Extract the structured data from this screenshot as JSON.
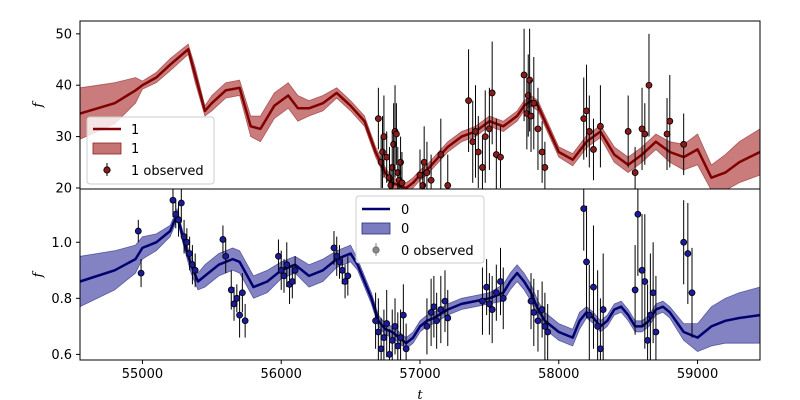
{
  "chart_data": [
    {
      "type": "line",
      "panel": "top",
      "title": "",
      "xlabel": "",
      "ylabel": "f",
      "xlim": [
        54550,
        59450
      ],
      "ylim": [
        19.8,
        52.5
      ],
      "xticks": [],
      "yticks": [
        20,
        30,
        40,
        50
      ],
      "ytick_labels": [
        "20",
        "30",
        "40",
        "50"
      ],
      "legend_placement": "lower-left",
      "colors": {
        "line": "#800000",
        "band": "#b85050",
        "points": "#8b1a1a"
      },
      "series": [
        {
          "name": "1",
          "kind": "model",
          "x": [
            54550,
            54800,
            54950,
            55000,
            55100,
            55200,
            55330,
            55380,
            55450,
            55500,
            55600,
            55700,
            55780,
            55850,
            55950,
            56050,
            56120,
            56200,
            56300,
            56400,
            56500,
            56600,
            56680,
            56750,
            56800,
            56850,
            56900,
            56950,
            57000,
            57050,
            57100,
            57150,
            57200,
            57300,
            57400,
            57500,
            57600,
            57700,
            57750,
            57800,
            57850,
            57900,
            58000,
            58100,
            58200,
            58300,
            58400,
            58500,
            58600,
            58700,
            58800,
            58900,
            59000,
            59100,
            59200,
            59300,
            59450
          ],
          "y": [
            34.5,
            36.5,
            39.0,
            40.0,
            41.5,
            44.0,
            47.0,
            42.0,
            35.0,
            36.5,
            39.0,
            39.5,
            32.0,
            31.5,
            36.0,
            38.0,
            35.5,
            35.5,
            36.5,
            38.5,
            36.0,
            33.0,
            27.0,
            23.0,
            21.0,
            20.5,
            20.0,
            21.0,
            22.5,
            23.5,
            25.0,
            26.5,
            28.0,
            30.0,
            31.0,
            33.0,
            32.0,
            34.0,
            36.0,
            37.0,
            36.0,
            33.0,
            27.0,
            25.5,
            29.0,
            31.0,
            26.5,
            24.5,
            26.5,
            29.0,
            27.0,
            26.0,
            27.5,
            22.0,
            23.0,
            25.0,
            27.0
          ]
        },
        {
          "name": "1",
          "kind": "band",
          "halfwidth": [
            5.0,
            4.0,
            2.5,
            0.8,
            1.0,
            1.2,
            1.0,
            1.5,
            1.0,
            1.5,
            1.5,
            1.5,
            2.0,
            2.5,
            2.5,
            2.5,
            2.5,
            1.5,
            1.5,
            1.0,
            1.0,
            1.0,
            1.0,
            1.0,
            1.0,
            1.0,
            1.0,
            1.0,
            1.0,
            1.0,
            1.0,
            1.0,
            1.0,
            1.0,
            1.0,
            1.0,
            1.0,
            1.0,
            1.0,
            1.0,
            1.0,
            1.0,
            1.0,
            1.2,
            1.2,
            1.2,
            1.5,
            1.5,
            1.5,
            1.5,
            2.0,
            2.5,
            3.0,
            2.5,
            3.5,
            4.0,
            4.5
          ]
        },
        {
          "name": "1 observed",
          "kind": "points",
          "x": [
            56700,
            56720,
            56730,
            56740,
            56760,
            56780,
            56790,
            56800,
            56810,
            56820,
            56830,
            56840,
            56850,
            56860,
            56870,
            57000,
            57020,
            57030,
            57050,
            57080,
            57150,
            57200,
            57350,
            57380,
            57400,
            57420,
            57450,
            57470,
            57500,
            57520,
            57550,
            57580,
            57750,
            57770,
            57780,
            57790,
            57800,
            57820,
            57850,
            57880,
            57900,
            58180,
            58200,
            58220,
            58250,
            58300,
            58500,
            58550,
            58600,
            58620,
            58650,
            58780,
            58800,
            58900
          ],
          "y": [
            33.5,
            25.0,
            27.0,
            30.0,
            26.0,
            22.0,
            20.5,
            24.0,
            28.5,
            31.0,
            30.5,
            23.0,
            21.5,
            25.0,
            21.0,
            22.5,
            20.5,
            25.0,
            23.0,
            21.5,
            26.5,
            20.5,
            37.0,
            29.0,
            31.0,
            27.0,
            24.0,
            30.0,
            31.5,
            38.5,
            26.5,
            26.0,
            42.0,
            34.5,
            38.0,
            41.0,
            34.0,
            36.5,
            31.5,
            27.0,
            24.0,
            33.5,
            35.0,
            31.0,
            27.5,
            32.0,
            31.0,
            23.0,
            31.5,
            30.5,
            40.0,
            30.5,
            33.0,
            28.5
          ],
          "yerr": [
            6,
            5,
            7,
            8,
            5,
            6,
            4,
            7,
            8,
            9,
            6,
            5,
            4,
            5,
            6,
            5,
            4,
            7,
            6,
            5,
            7,
            6,
            10,
            8,
            9,
            7,
            6,
            9,
            8,
            10,
            7,
            6,
            9,
            7,
            8,
            10,
            7,
            9,
            8,
            6,
            5,
            8,
            9,
            7,
            6,
            8,
            7,
            5,
            8,
            6,
            10,
            7,
            9,
            6
          ]
        }
      ],
      "legend": [
        "1",
        "1",
        "1 observed"
      ]
    },
    {
      "type": "line",
      "panel": "bottom",
      "title": "",
      "xlabel": "t",
      "ylabel": "f",
      "xlim": [
        54550,
        59450
      ],
      "ylim": [
        0.58,
        1.19
      ],
      "xticks": [
        55000,
        56000,
        57000,
        58000,
        59000
      ],
      "xtick_labels": [
        "55000",
        "56000",
        "57000",
        "58000",
        "59000"
      ],
      "yticks": [
        0.6,
        0.8,
        1.0
      ],
      "ytick_labels": [
        "0.6",
        "0.8",
        "1.0"
      ],
      "legend_placement": "upper-center",
      "colors": {
        "line": "#00006e",
        "band": "#5a5ab0",
        "points": "#1a1a9a"
      },
      "series": [
        {
          "name": "0",
          "kind": "model",
          "x": [
            54550,
            54800,
            54950,
            55000,
            55100,
            55200,
            55250,
            55300,
            55350,
            55400,
            55450,
            55550,
            55650,
            55700,
            55800,
            55900,
            56000,
            56100,
            56200,
            56300,
            56400,
            56500,
            56550,
            56600,
            56650,
            56700,
            56750,
            56800,
            56900,
            56950,
            57000,
            57050,
            57100,
            57200,
            57300,
            57400,
            57500,
            57600,
            57650,
            57700,
            57750,
            57800,
            57850,
            57900,
            58000,
            58100,
            58150,
            58200,
            58250,
            58300,
            58350,
            58400,
            58450,
            58500,
            58550,
            58600,
            58650,
            58700,
            58750,
            58800,
            58900,
            59000,
            59100,
            59200,
            59300,
            59450
          ],
          "y": [
            0.86,
            0.9,
            0.94,
            0.98,
            1.0,
            1.04,
            1.1,
            1.0,
            0.92,
            0.86,
            0.88,
            0.92,
            0.94,
            0.93,
            0.84,
            0.86,
            0.9,
            0.92,
            0.88,
            0.9,
            0.94,
            0.96,
            0.92,
            0.86,
            0.8,
            0.72,
            0.69,
            0.68,
            0.64,
            0.66,
            0.7,
            0.72,
            0.73,
            0.76,
            0.78,
            0.79,
            0.8,
            0.82,
            0.86,
            0.89,
            0.86,
            0.82,
            0.76,
            0.72,
            0.68,
            0.66,
            0.72,
            0.75,
            0.73,
            0.7,
            0.72,
            0.76,
            0.77,
            0.74,
            0.7,
            0.7,
            0.72,
            0.76,
            0.77,
            0.75,
            0.68,
            0.66,
            0.7,
            0.72,
            0.73,
            0.74
          ]
        },
        {
          "name": "0",
          "kind": "band",
          "halfwidth": [
            0.09,
            0.07,
            0.05,
            0.04,
            0.03,
            0.02,
            0.02,
            0.02,
            0.03,
            0.03,
            0.04,
            0.04,
            0.04,
            0.04,
            0.04,
            0.04,
            0.03,
            0.03,
            0.04,
            0.04,
            0.03,
            0.03,
            0.02,
            0.02,
            0.02,
            0.02,
            0.02,
            0.02,
            0.02,
            0.02,
            0.02,
            0.02,
            0.02,
            0.02,
            0.02,
            0.02,
            0.02,
            0.03,
            0.03,
            0.03,
            0.03,
            0.03,
            0.03,
            0.03,
            0.03,
            0.03,
            0.03,
            0.02,
            0.02,
            0.02,
            0.02,
            0.02,
            0.02,
            0.02,
            0.02,
            0.02,
            0.02,
            0.02,
            0.02,
            0.02,
            0.03,
            0.05,
            0.07,
            0.08,
            0.09,
            0.1
          ]
        },
        {
          "name": "0 observed",
          "kind": "points",
          "x": [
            54970,
            54990,
            55220,
            55240,
            55260,
            55280,
            55300,
            55320,
            55340,
            55360,
            55380,
            55580,
            55600,
            55640,
            55660,
            55680,
            55700,
            55720,
            55740,
            55980,
            56000,
            56020,
            56040,
            56060,
            56080,
            56100,
            56380,
            56400,
            56420,
            56440,
            56460,
            56480,
            56680,
            56700,
            56720,
            56740,
            56760,
            56780,
            56800,
            56820,
            56840,
            56860,
            56880,
            56900,
            57050,
            57080,
            57100,
            57120,
            57150,
            57180,
            57200,
            57450,
            57480,
            57500,
            57520,
            57550,
            57580,
            57600,
            57800,
            57820,
            57850,
            57880,
            57900,
            57920,
            58180,
            58200,
            58220,
            58250,
            58280,
            58300,
            58320,
            58550,
            58570,
            58600,
            58620,
            58640,
            58660,
            58680,
            58700,
            58900,
            58930,
            58960
          ],
          "y": [
            1.04,
            0.89,
            1.15,
            1.1,
            1.08,
            1.14,
            1.02,
            1.0,
            0.96,
            0.92,
            0.9,
            1.01,
            0.95,
            0.83,
            0.78,
            0.8,
            0.74,
            0.82,
            0.72,
            0.95,
            0.9,
            0.88,
            0.92,
            0.85,
            0.86,
            0.9,
            0.98,
            0.95,
            0.93,
            0.9,
            0.86,
            0.88,
            0.72,
            0.68,
            0.62,
            0.66,
            0.71,
            0.6,
            0.65,
            0.7,
            0.63,
            0.66,
            0.74,
            0.62,
            0.7,
            0.75,
            0.77,
            0.72,
            0.76,
            0.79,
            0.73,
            0.79,
            0.84,
            0.78,
            0.76,
            0.82,
            0.86,
            0.8,
            0.79,
            0.75,
            0.72,
            0.76,
            0.7,
            0.68,
            1.12,
            0.93,
            0.74,
            0.84,
            0.7,
            0.62,
            0.76,
            0.83,
            1.1,
            0.9,
            0.86,
            0.65,
            0.74,
            0.82,
            0.68,
            1.0,
            0.96,
            0.82
          ],
          "yerr": [
            0.04,
            0.05,
            0.06,
            0.05,
            0.06,
            0.07,
            0.06,
            0.05,
            0.06,
            0.07,
            0.06,
            0.05,
            0.06,
            0.07,
            0.06,
            0.05,
            0.08,
            0.07,
            0.06,
            0.06,
            0.07,
            0.06,
            0.08,
            0.07,
            0.06,
            0.05,
            0.06,
            0.07,
            0.06,
            0.05,
            0.06,
            0.07,
            0.1,
            0.12,
            0.11,
            0.1,
            0.12,
            0.09,
            0.11,
            0.1,
            0.12,
            0.1,
            0.11,
            0.09,
            0.1,
            0.12,
            0.11,
            0.1,
            0.12,
            0.11,
            0.1,
            0.12,
            0.1,
            0.11,
            0.12,
            0.1,
            0.12,
            0.11,
            0.1,
            0.12,
            0.11,
            0.1,
            0.12,
            0.1,
            0.15,
            0.2,
            0.18,
            0.22,
            0.2,
            0.18,
            0.2,
            0.16,
            0.22,
            0.2,
            0.24,
            0.2,
            0.22,
            0.18,
            0.2,
            0.15,
            0.18,
            0.16
          ]
        }
      ],
      "legend": [
        "0",
        "0",
        "0 observed"
      ]
    }
  ]
}
